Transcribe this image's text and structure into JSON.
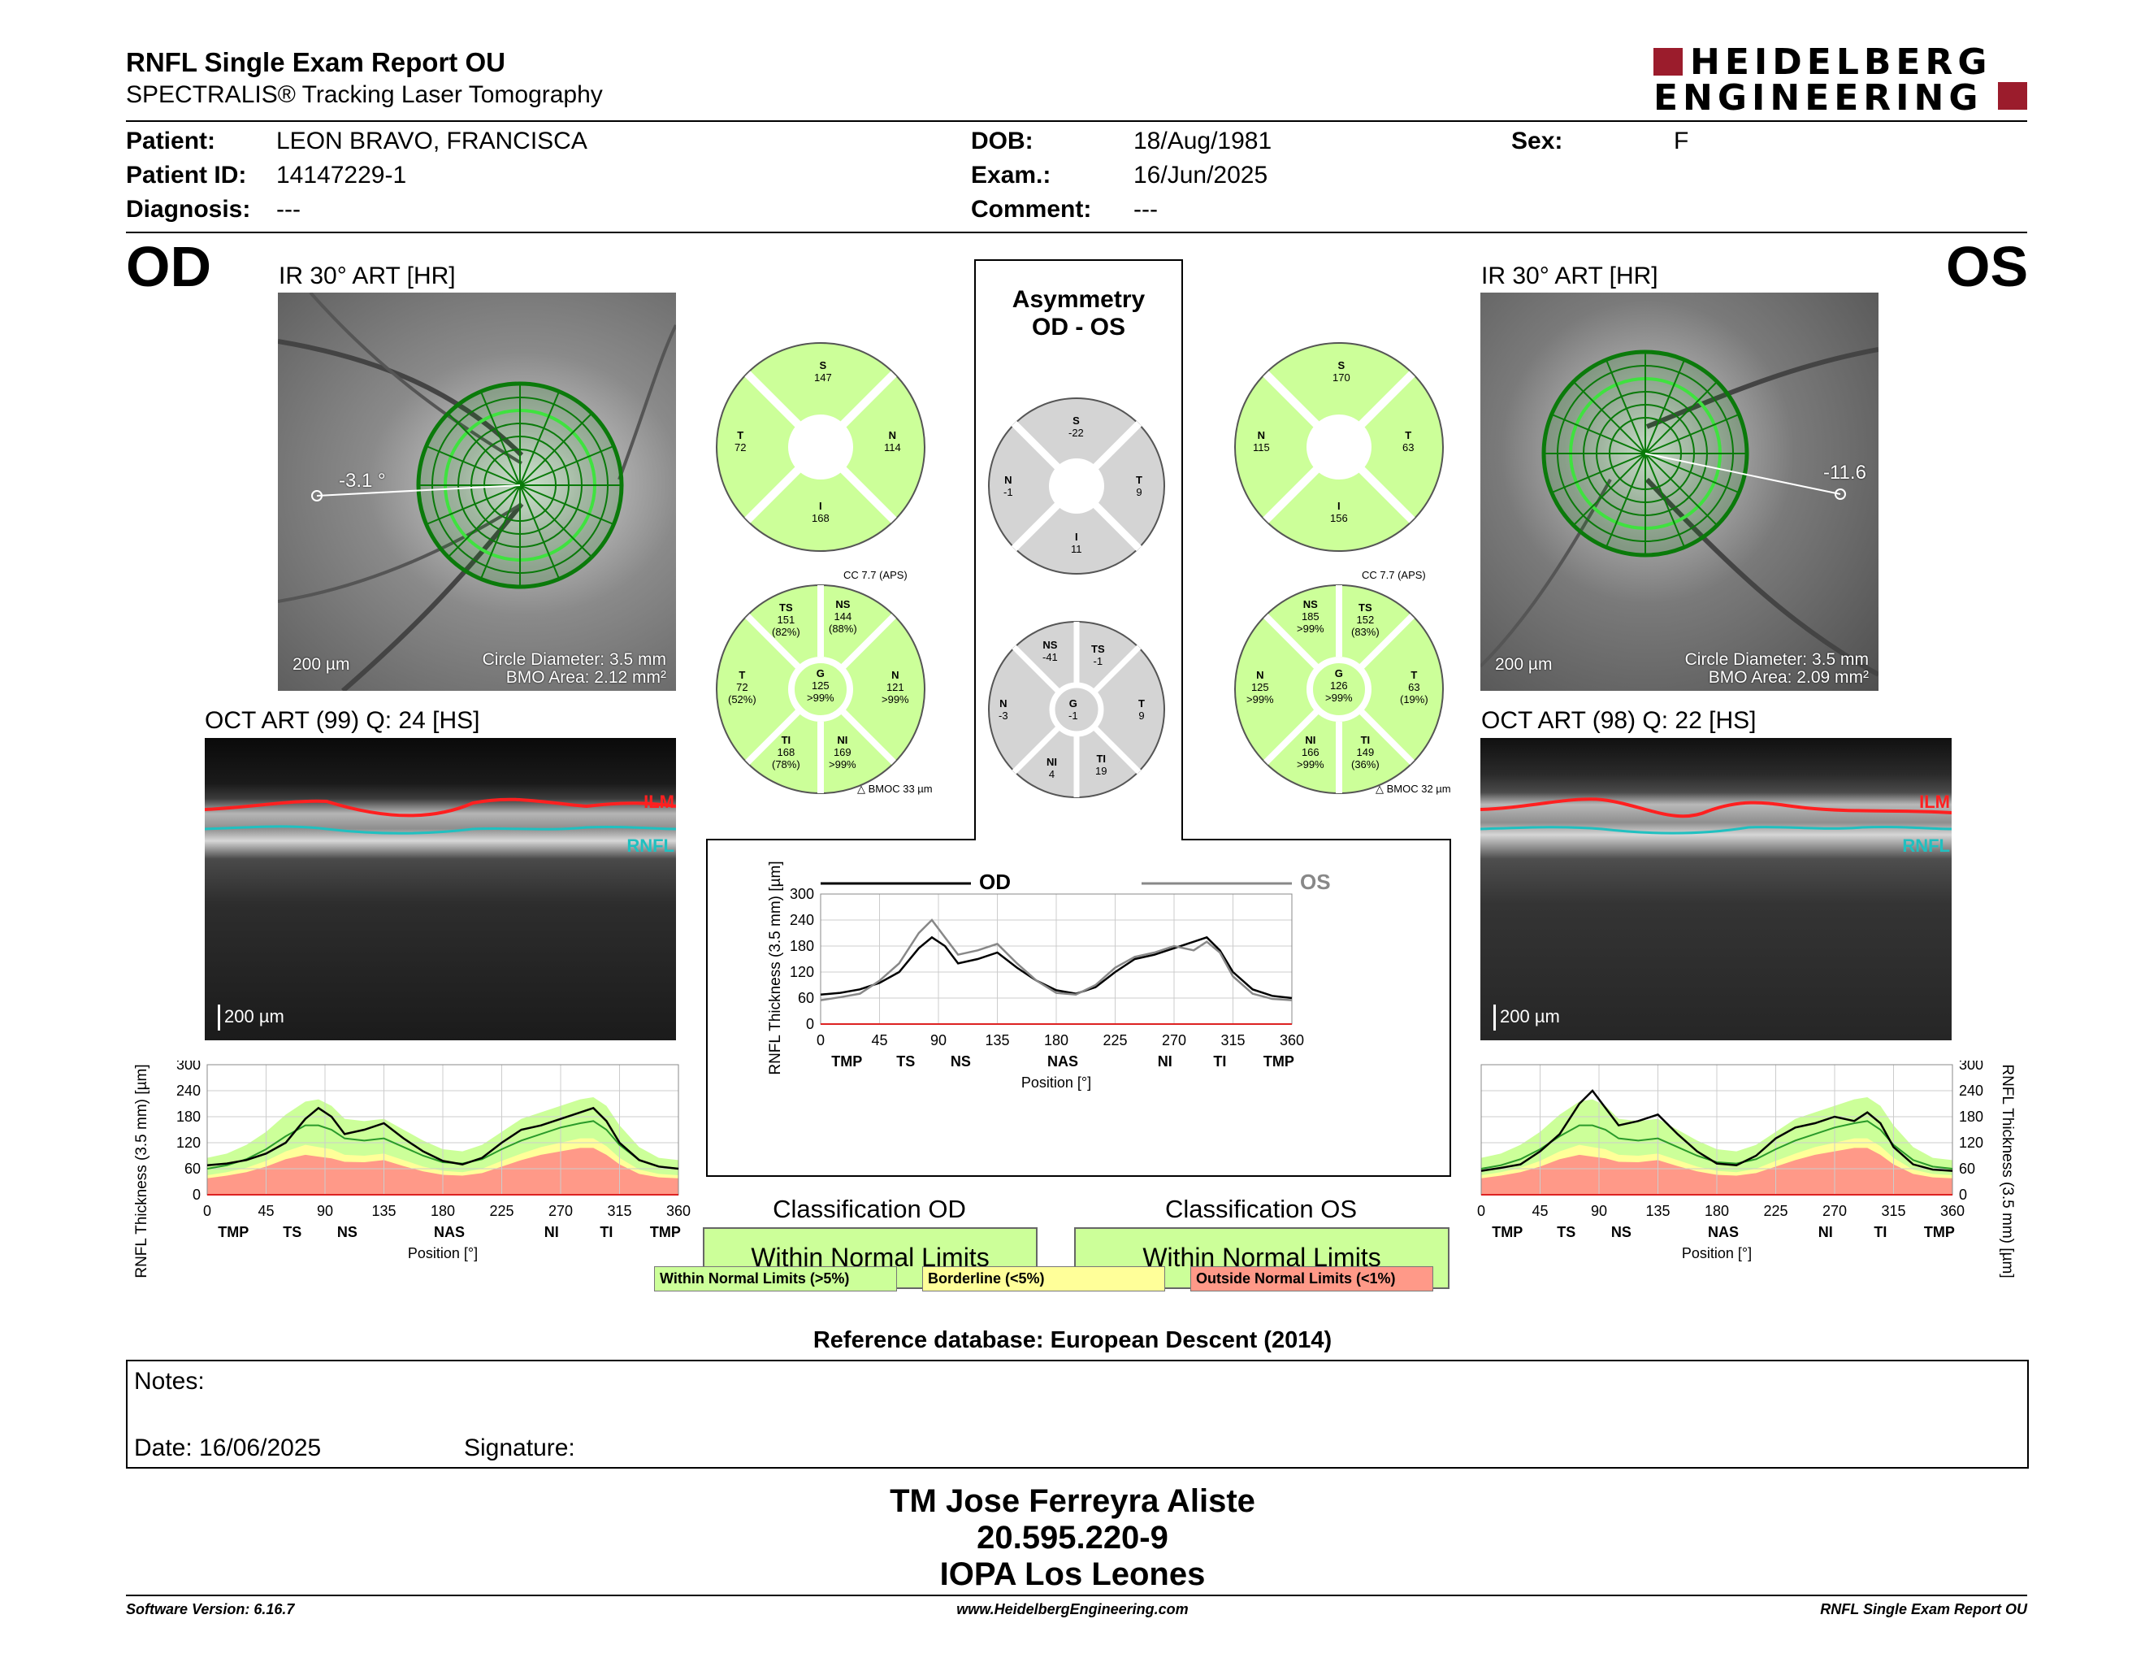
{
  "header": {
    "title": "RNFL Single Exam Report OU",
    "subtitle": "SPECTRALIS® Tracking Laser Tomography",
    "brand_line1": "HEIDELBERG",
    "brand_line2": "ENGINEERING"
  },
  "patient": {
    "patient_label": "Patient:",
    "patient_value": "LEON BRAVO, FRANCISCA",
    "id_label": "Patient ID:",
    "id_value": "14147229-1",
    "diagnosis_label": "Diagnosis:",
    "diagnosis_value": "---",
    "dob_label": "DOB:",
    "dob_value": "18/Aug/1981",
    "exam_label": "Exam.:",
    "exam_value": "16/Jun/2025",
    "comment_label": "Comment:",
    "comment_value": "---",
    "sex_label": "Sex:",
    "sex_value": "F"
  },
  "od": {
    "eye": "OD",
    "ir_label": "IR 30° ART [HR]",
    "angle": "-3.1 °",
    "scale": "200 µm",
    "circle": "Circle Diameter: 3.5 mm",
    "bmo": "BMO Area: 2.12 mm²",
    "oct_label": "OCT ART (99) Q: 24 [HS]",
    "oct_scale": "200 µm",
    "ilm": "ILM",
    "rnfl": "RNFL",
    "quad": {
      "S": "147",
      "T": "72",
      "N": "114",
      "I": "168"
    },
    "cc": "CC 7.7 (APS)",
    "sectors": {
      "TS": [
        "151",
        "(82%)"
      ],
      "NS": [
        "144",
        "(88%)"
      ],
      "T": [
        "72",
        "(52%)"
      ],
      "G": [
        "125",
        ">99%"
      ],
      "N": [
        "121",
        ">99%"
      ],
      "TI": [
        "168",
        "(78%)"
      ],
      "NI": [
        "169",
        ">99%"
      ]
    },
    "bmoc": "BMOC 33 µm",
    "classification_title": "Classification OD",
    "classification": "Within Normal Limits"
  },
  "os": {
    "eye": "OS",
    "ir_label": "IR 30° ART [HR]",
    "angle": "-11.6",
    "scale": "200 µm",
    "circle": "Circle Diameter: 3.5 mm",
    "bmo": "BMO Area: 2.09 mm²",
    "oct_label": "OCT ART (98) Q: 22 [HS]",
    "oct_scale": "200 µm",
    "ilm": "ILM",
    "rnfl": "RNFL",
    "quad": {
      "S": "170",
      "T": "63",
      "N": "115",
      "I": "156"
    },
    "cc": "CC 7.7 (APS)",
    "sectors": {
      "NS": [
        "185",
        ">99%"
      ],
      "TS": [
        "152",
        "(83%)"
      ],
      "N": [
        "125",
        ">99%"
      ],
      "G": [
        "126",
        ">99%"
      ],
      "T": [
        "63",
        "(19%)"
      ],
      "NI": [
        "166",
        ">99%"
      ],
      "TI": [
        "149",
        "(36%)"
      ]
    },
    "bmoc": "BMOC 32 µm",
    "classification_title": "Classification OS",
    "classification": "Within Normal Limits"
  },
  "asym": {
    "title1": "Asymmetry",
    "title2": "OD - OS",
    "quad": {
      "S": "-22",
      "N": "-1",
      "T": "9",
      "I": "11"
    },
    "sectors": {
      "NS": "-41",
      "TS": "-1",
      "N": "-3",
      "G": "-1",
      "T": "9",
      "NI": "4",
      "TI": "19"
    }
  },
  "legend": {
    "wnl": "Within Normal Limits (>5%)",
    "bl": "Borderline (<5%)",
    "onl": "Outside Normal Limits (<1%)"
  },
  "refdb": "Reference database: European Descent (2014)",
  "notes": {
    "notes_label": "Notes:",
    "date_label": "Date: 16/06/2025",
    "signature_label": "Signature:"
  },
  "signer": {
    "name": "TM Jose Ferreyra Aliste",
    "id": "20.595.220-9",
    "org": "IOPA Los Leones"
  },
  "footer": {
    "version": "Software Version: 6.16.7",
    "url": "www.HeidelbergEngineering.com",
    "report": "RNFL Single Exam Report OU"
  },
  "colors": {
    "normal": "#ccff99",
    "borderline": "#ffff99",
    "outside": "#ff9988",
    "ilm": "#ff2020",
    "rnfl": "#20c0c0",
    "od_line": "#000000",
    "os_line": "#888888"
  },
  "chart_data": [
    {
      "type": "line",
      "name": "od_profile",
      "ylabel": "RNFL Thickness (3.5 mm) [µm]",
      "xlabel": "Position [°]",
      "ylim": [
        0,
        300
      ],
      "yticks": [
        0,
        60,
        120,
        180,
        240,
        300
      ],
      "xticks": [
        0,
        45,
        90,
        135,
        180,
        225,
        270,
        315,
        360
      ],
      "sector_labels": [
        {
          "label": "TMP",
          "x": 20
        },
        {
          "label": "TS",
          "x": 65
        },
        {
          "label": "NS",
          "x": 107
        },
        {
          "label": "NAS",
          "x": 185
        },
        {
          "label": "NI",
          "x": 263
        },
        {
          "label": "TI",
          "x": 305
        },
        {
          "label": "TMP",
          "x": 350
        }
      ],
      "x": [
        0,
        15,
        30,
        45,
        60,
        75,
        85,
        95,
        105,
        120,
        135,
        150,
        165,
        180,
        195,
        210,
        225,
        240,
        255,
        270,
        285,
        295,
        305,
        315,
        330,
        345,
        360
      ],
      "values": [
        68,
        72,
        80,
        95,
        120,
        175,
        200,
        180,
        140,
        150,
        165,
        130,
        100,
        78,
        70,
        85,
        120,
        150,
        160,
        175,
        190,
        200,
        170,
        120,
        80,
        65,
        60
      ],
      "normal_upper": [
        85,
        95,
        115,
        145,
        185,
        215,
        220,
        205,
        175,
        170,
        175,
        150,
        125,
        105,
        100,
        115,
        145,
        175,
        190,
        205,
        220,
        225,
        205,
        160,
        110,
        85,
        80
      ],
      "normal_mid": [
        60,
        68,
        82,
        105,
        135,
        160,
        160,
        150,
        130,
        125,
        130,
        110,
        90,
        75,
        72,
        82,
        105,
        125,
        140,
        155,
        165,
        170,
        150,
        115,
        80,
        65,
        60
      ],
      "borderline_upper": [
        45,
        52,
        62,
        78,
        100,
        115,
        110,
        105,
        92,
        90,
        95,
        80,
        65,
        55,
        52,
        60,
        78,
        95,
        110,
        120,
        130,
        130,
        112,
        85,
        58,
        48,
        45
      ],
      "outside_upper": [
        38,
        44,
        52,
        65,
        82,
        92,
        88,
        84,
        76,
        75,
        80,
        66,
        54,
        46,
        44,
        50,
        65,
        80,
        92,
        100,
        108,
        108,
        92,
        70,
        48,
        40,
        38
      ]
    },
    {
      "type": "line",
      "name": "asymmetry_profile",
      "ylabel": "RNFL Thickness (3.5 mm) [µm]",
      "xlabel": "Position [°]",
      "ylim": [
        0,
        300
      ],
      "yticks": [
        0,
        60,
        120,
        180,
        240,
        300
      ],
      "xticks": [
        0,
        45,
        90,
        135,
        180,
        225,
        270,
        315,
        360
      ],
      "sector_labels": [
        {
          "label": "TMP",
          "x": 20
        },
        {
          "label": "TS",
          "x": 65
        },
        {
          "label": "NS",
          "x": 107
        },
        {
          "label": "NAS",
          "x": 185
        },
        {
          "label": "NI",
          "x": 263
        },
        {
          "label": "TI",
          "x": 305
        },
        {
          "label": "TMP",
          "x": 350
        }
      ],
      "series": [
        {
          "name": "OD",
          "x": [
            0,
            15,
            30,
            45,
            60,
            75,
            85,
            95,
            105,
            120,
            135,
            150,
            165,
            180,
            195,
            210,
            225,
            240,
            255,
            270,
            285,
            295,
            305,
            315,
            330,
            345,
            360
          ],
          "values": [
            68,
            72,
            80,
            95,
            120,
            175,
            200,
            180,
            140,
            150,
            165,
            130,
            100,
            78,
            70,
            85,
            120,
            150,
            160,
            175,
            190,
            200,
            170,
            120,
            80,
            65,
            60
          ]
        },
        {
          "name": "OS",
          "x": [
            0,
            15,
            30,
            45,
            60,
            75,
            85,
            95,
            105,
            120,
            135,
            150,
            165,
            180,
            195,
            210,
            225,
            240,
            255,
            270,
            285,
            295,
            305,
            315,
            330,
            345,
            360
          ],
          "values": [
            55,
            62,
            70,
            100,
            140,
            210,
            240,
            200,
            160,
            170,
            185,
            140,
            100,
            72,
            68,
            90,
            130,
            155,
            165,
            180,
            170,
            190,
            165,
            110,
            70,
            58,
            55
          ]
        }
      ]
    },
    {
      "type": "line",
      "name": "os_profile",
      "ylabel": "RNFL Thickness (3.5 mm) [µm]",
      "xlabel": "Position [°]",
      "ylim": [
        0,
        300
      ],
      "yticks": [
        0,
        60,
        120,
        180,
        240,
        300
      ],
      "xticks": [
        0,
        45,
        90,
        135,
        180,
        225,
        270,
        315,
        360
      ],
      "sector_labels": [
        {
          "label": "TMP",
          "x": 20
        },
        {
          "label": "TS",
          "x": 65
        },
        {
          "label": "NS",
          "x": 107
        },
        {
          "label": "NAS",
          "x": 185
        },
        {
          "label": "NI",
          "x": 263
        },
        {
          "label": "TI",
          "x": 305
        },
        {
          "label": "TMP",
          "x": 350
        }
      ],
      "x": [
        0,
        15,
        30,
        45,
        60,
        75,
        85,
        95,
        105,
        120,
        135,
        150,
        165,
        180,
        195,
        210,
        225,
        240,
        255,
        270,
        285,
        295,
        305,
        315,
        330,
        345,
        360
      ],
      "values": [
        55,
        62,
        70,
        100,
        140,
        210,
        240,
        200,
        160,
        170,
        185,
        140,
        100,
        72,
        68,
        90,
        130,
        155,
        165,
        180,
        170,
        190,
        165,
        110,
        70,
        58,
        55
      ],
      "normal_upper": [
        85,
        95,
        115,
        145,
        185,
        215,
        220,
        205,
        175,
        170,
        175,
        150,
        125,
        105,
        100,
        115,
        145,
        175,
        190,
        205,
        220,
        225,
        205,
        160,
        110,
        85,
        80
      ],
      "normal_mid": [
        60,
        68,
        82,
        105,
        135,
        160,
        160,
        150,
        130,
        125,
        130,
        110,
        90,
        75,
        72,
        82,
        105,
        125,
        140,
        155,
        165,
        170,
        150,
        115,
        80,
        65,
        60
      ],
      "borderline_upper": [
        45,
        52,
        62,
        78,
        100,
        115,
        110,
        105,
        92,
        90,
        95,
        80,
        65,
        55,
        52,
        60,
        78,
        95,
        110,
        120,
        130,
        130,
        112,
        85,
        58,
        48,
        45
      ],
      "outside_upper": [
        38,
        44,
        52,
        65,
        82,
        92,
        88,
        84,
        76,
        75,
        80,
        66,
        54,
        46,
        44,
        50,
        65,
        80,
        92,
        100,
        108,
        108,
        92,
        70,
        48,
        40,
        38
      ]
    }
  ]
}
